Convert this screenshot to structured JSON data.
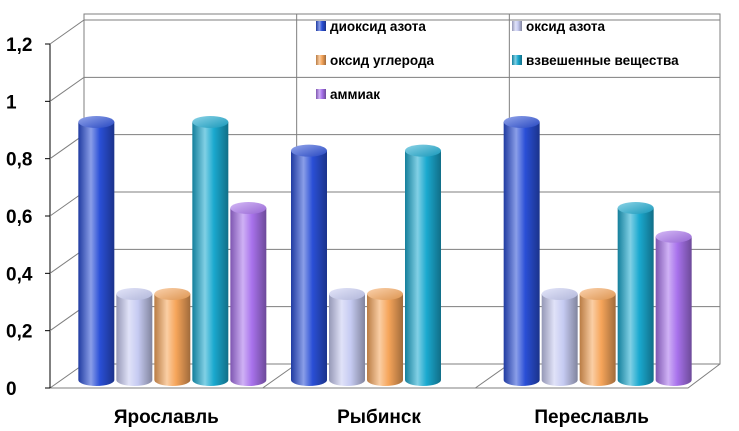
{
  "chart_data": {
    "type": "bar",
    "style": "3d-cylinder",
    "categories": [
      "Ярославль",
      "Рыбинск",
      "Переславль"
    ],
    "series": [
      {
        "name": "диоксид азота",
        "values": [
          0.9,
          0.8,
          0.9
        ],
        "color": "#2a4fd6"
      },
      {
        "name": "оксид азота",
        "values": [
          0.3,
          0.3,
          0.3
        ],
        "color": "#c6cbf2"
      },
      {
        "name": "оксид углерода",
        "values": [
          0.3,
          0.3,
          0.3
        ],
        "color": "#f6a55a"
      },
      {
        "name": "взвешенные вещества",
        "values": [
          0.9,
          0.8,
          0.6
        ],
        "color": "#1aa9cf"
      },
      {
        "name": "аммиак",
        "values": [
          0.6,
          null,
          0.5
        ],
        "color": "#a872ec"
      }
    ],
    "ylim": [
      0,
      1.2
    ],
    "yticks": [
      "0",
      "0,2",
      "0,4",
      "0,6",
      "0,8",
      "1",
      "1,2"
    ],
    "grid": true,
    "legend_position": "top-right"
  }
}
